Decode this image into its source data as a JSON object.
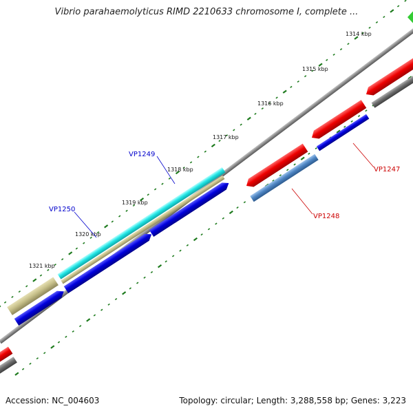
{
  "title": "Vibrio parahaemolyticus RIMD 2210633 chromosome I, complete ...",
  "footer": {
    "accession": "Accession: NC_004603",
    "summary": "Topology: circular; Length: 3,288,558 bp; Genes: 3,223"
  },
  "scale": {
    "unit": "kbp",
    "major_ticks": [
      {
        "kbp": 1314,
        "label": "1314 kbp"
      },
      {
        "kbp": 1315,
        "label": "1315 kbp"
      },
      {
        "kbp": 1316,
        "label": "1316 kbp"
      },
      {
        "kbp": 1317,
        "label": "1317 kbp"
      },
      {
        "kbp": 1318,
        "label": "1318 kbp"
      },
      {
        "kbp": 1319,
        "label": "1319 kbp"
      },
      {
        "kbp": 1320,
        "label": "1320 kbp"
      },
      {
        "kbp": 1321,
        "label": "1321 kbp"
      }
    ],
    "tick_color": "#1e7b1e"
  },
  "gene_labels": [
    {
      "id": "VP1249",
      "text": "VP1249",
      "color": "#0000cc"
    },
    {
      "id": "VP1250",
      "text": "VP1250",
      "color": "#0000cc"
    },
    {
      "id": "VP1247",
      "text": "VP1247",
      "color": "#cc0000"
    },
    {
      "id": "VP1248",
      "text": "VP1248",
      "color": "#cc0000"
    }
  ],
  "colors": {
    "backbone": "#8a8a8a",
    "red_feature": "#ee0000",
    "blue_feature": "#0000dd",
    "cyan_feature": "#22e6e6",
    "khaki_feature": "#c7c08a",
    "steel_feature": "#4f86c4",
    "gray_feature": "#6e6e6e",
    "green_marker": "#33cc33"
  }
}
